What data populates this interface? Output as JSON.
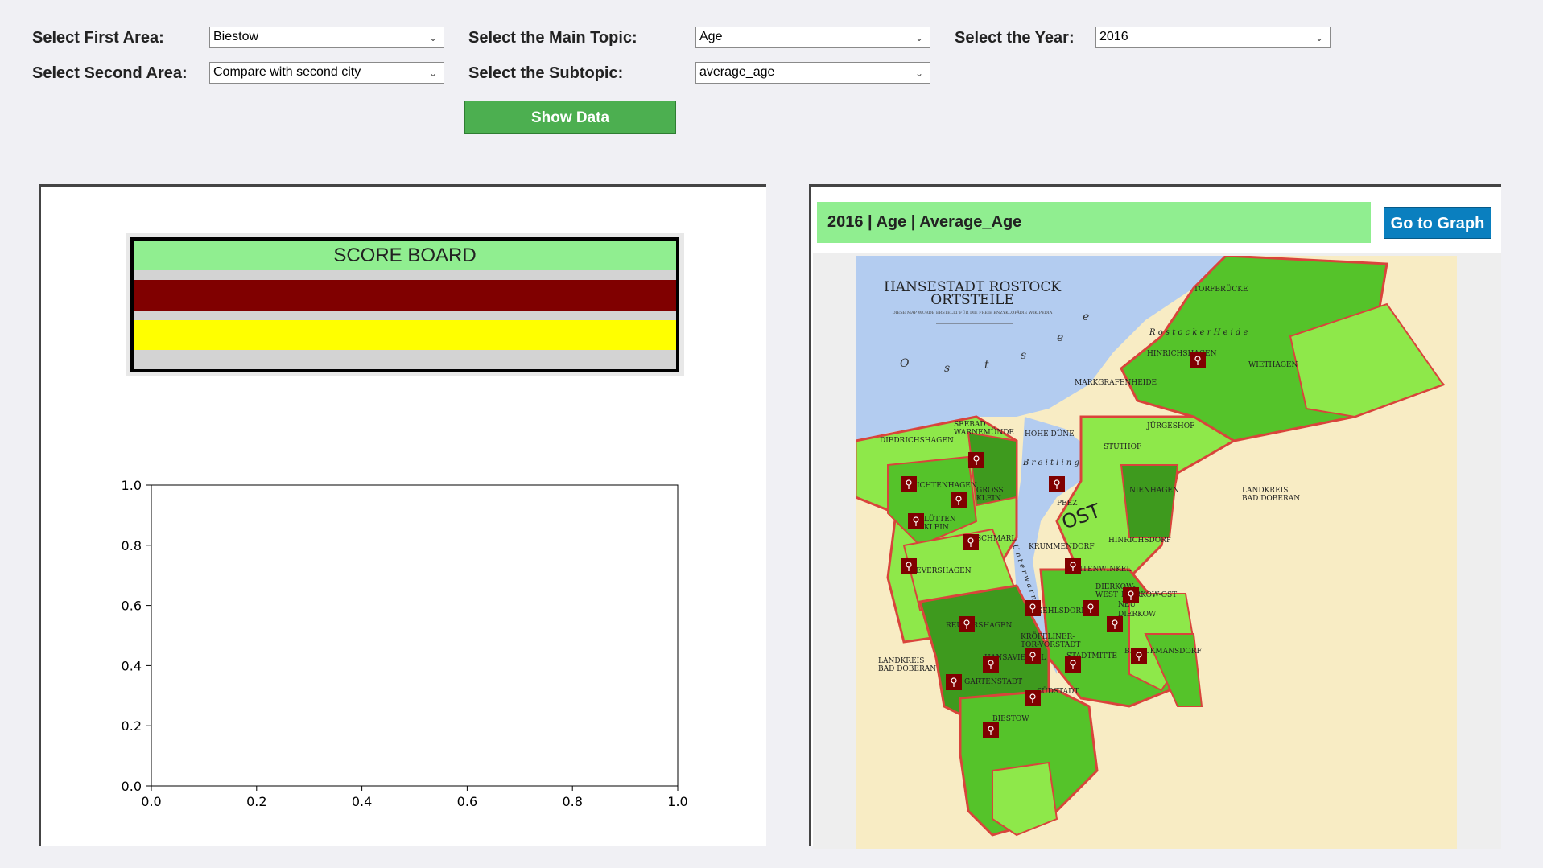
{
  "controls": {
    "first_area_label": "Select First Area:",
    "first_area_value": "Biestow",
    "second_area_label": "Select Second Area:",
    "second_area_value": "Compare with second city",
    "main_topic_label": "Select the Main Topic:",
    "main_topic_value": "Age",
    "subtopic_label": "Select the Subtopic:",
    "subtopic_value": "average_age",
    "year_label": "Select the Year:",
    "year_value": "2016",
    "show_button": "Show Data"
  },
  "scoreboard": {
    "title": "SCORE BOARD",
    "colors": {
      "header": "#90ee90",
      "first": "#800000",
      "second": "#ffff00"
    }
  },
  "chart_data": {
    "type": "line",
    "title": "",
    "xlabel": "",
    "ylabel": "",
    "xlim": [
      0.0,
      1.0
    ],
    "ylim": [
      0.0,
      1.0
    ],
    "xticks": [
      "0.0",
      "0.2",
      "0.4",
      "0.6",
      "0.8",
      "1.0"
    ],
    "yticks": [
      "0.0",
      "0.2",
      "0.4",
      "0.6",
      "0.8",
      "1.0"
    ],
    "series": [],
    "grid": false
  },
  "map_panel": {
    "header": "2016 | Age | Average_Age",
    "graph_button": "Go to Graph",
    "map_title_1": "HANSESTADT ROSTOCK",
    "map_title_2": "ORTSTEILE",
    "map_subtitle": "DIESE MAP WURDE ERSTELLT FÜR DIE FREIE ENZYKLOPÄDIE WIKIPEDIA",
    "sea_letters": [
      "O",
      "s",
      "t",
      "s",
      "e",
      "e"
    ],
    "heide": "R o s t o c k e r   H e i d e",
    "breitling": "B r e i t l i n g",
    "unterwarnow": "U n t e r w a r n o w",
    "ost": "OST",
    "districts": {
      "torfbrucke": "TORFBRÜCKE",
      "hinrichshagen": "HINRICHSHAGEN",
      "wiethagen": "WIETHAGEN",
      "markgrafenheide": "MARKGRAFENHEIDE",
      "jurgeshof": "JÜRGESHOF",
      "stuthof": "STUTHOF",
      "hohe_dune": "HOHE DÜNE",
      "seebad1": "SEEBAD",
      "seebad2": "WARNEMÜNDE",
      "diedrichshagen": "DIEDRICHSHAGEN",
      "lichtenhagen": "LICHTENHAGEN",
      "gross1": "GROSS",
      "gross2": "KLEIN",
      "lutten1": "LÜTTEN",
      "lutten2": "KLEIN",
      "schmarl": "SCHMARL",
      "evershagen": "EVERSHAGEN",
      "peez": "PEEZ",
      "nienhagen": "NIENHAGEN",
      "landkreis_e1": "LANDKREIS",
      "landkreis_e2": "BAD DOBERAN",
      "krummendorf": "KRUMMENDORF",
      "hinrichsdorf": "HINRICHSDORF",
      "toitenwinkel": "TOITENWINKEL",
      "dierkow_west1": "DIERKOW-",
      "dierkow_west2": "WEST",
      "dierkow_ost": "DIERKOW-OST",
      "dierkow_neu1": "NEU",
      "dierkow_neu2": "DIERKOW",
      "gehlsdorf": "GEHLSDORF",
      "reutershagen": "REUTERSHAGEN",
      "kroepeliner1": "KRÖPELINER-",
      "kroepeliner2": "TOR-VORSTADT",
      "hansaviertel": "HANSAVIERTEL",
      "stadtmitte": "STADTMITTE",
      "brinckmansdorf": "BRINCKMANSDORF",
      "landkreis_w1": "LANDKREIS",
      "landkreis_w2": "BAD DOBERAN",
      "gartenstadt": "GARTENSTADT",
      "sudstadt": "SÜDSTADT",
      "biestow": "BIESTOW"
    }
  },
  "icons": {
    "dropdown": "chevron-down-icon",
    "marker": "map-pin-icon"
  }
}
